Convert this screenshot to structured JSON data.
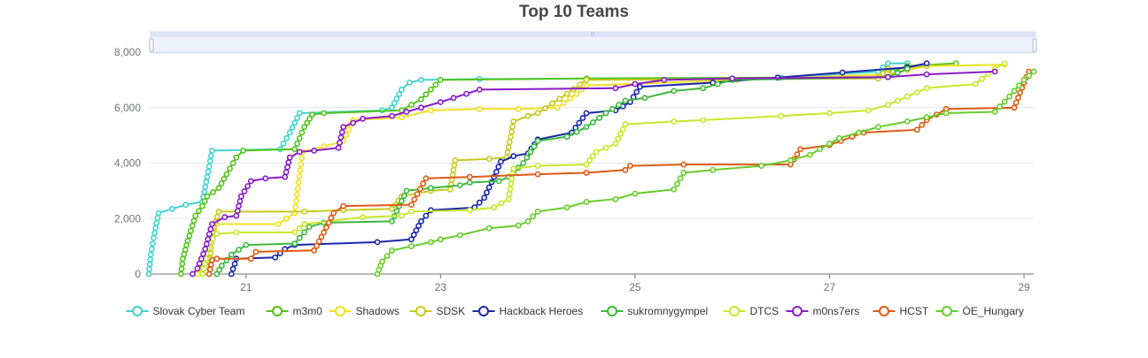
{
  "chart_data": {
    "type": "line",
    "title": "Top 10 Teams",
    "xlabel": "",
    "ylabel": "",
    "x_range": [
      20.0,
      29.1
    ],
    "x_ticks": [
      "21",
      "23",
      "25",
      "27",
      "29"
    ],
    "x_tick_values": [
      21,
      23,
      25,
      27,
      29
    ],
    "y_range": [
      0,
      8000
    ],
    "y_ticks": [
      "0",
      "2,000",
      "4,000",
      "6,000",
      "8,000"
    ],
    "y_tick_values": [
      0,
      2000,
      4000,
      6000,
      8000
    ],
    "grid": true,
    "legend_position": "bottom",
    "data_zoom": true,
    "series": [
      {
        "name": "Slovak Cyber Team",
        "color": "#3fd4d0",
        "points": [
          [
            20.0,
            0
          ],
          [
            20.02,
            700
          ],
          [
            20.05,
            1300
          ],
          [
            20.1,
            2200
          ],
          [
            20.38,
            2500
          ],
          [
            20.55,
            2600
          ],
          [
            20.6,
            3500
          ],
          [
            20.65,
            4450
          ],
          [
            21.35,
            4500
          ],
          [
            21.45,
            5100
          ],
          [
            21.55,
            5800
          ],
          [
            22.4,
            5900
          ],
          [
            22.5,
            6000
          ],
          [
            22.6,
            6650
          ],
          [
            22.68,
            6900
          ],
          [
            22.8,
            7000
          ],
          [
            23.4,
            7030
          ],
          [
            26.5,
            7080
          ],
          [
            27.5,
            7300
          ],
          [
            27.6,
            7600
          ],
          [
            27.8,
            7600
          ]
        ]
      },
      {
        "name": "m3m0",
        "color": "#52c41a",
        "points": [
          [
            20.33,
            0
          ],
          [
            20.35,
            550
          ],
          [
            20.4,
            1200
          ],
          [
            20.48,
            2100
          ],
          [
            20.55,
            2450
          ],
          [
            20.6,
            2800
          ],
          [
            20.72,
            3100
          ],
          [
            20.8,
            3600
          ],
          [
            20.9,
            4200
          ],
          [
            20.97,
            4450
          ],
          [
            21.5,
            4500
          ],
          [
            21.6,
            5300
          ],
          [
            21.68,
            5750
          ],
          [
            21.8,
            5800
          ],
          [
            22.6,
            5900
          ],
          [
            22.8,
            6300
          ],
          [
            23.0,
            7000
          ],
          [
            24.5,
            7050
          ],
          [
            27.5,
            7100
          ],
          [
            27.8,
            7500
          ],
          [
            28.3,
            7600
          ]
        ]
      },
      {
        "name": "Shadows",
        "color": "#f0e020",
        "points": [
          [
            20.5,
            0
          ],
          [
            20.55,
            500
          ],
          [
            20.62,
            1300
          ],
          [
            20.7,
            1800
          ],
          [
            21.33,
            1800
          ],
          [
            21.5,
            2200
          ],
          [
            21.58,
            4400
          ],
          [
            21.8,
            4600
          ],
          [
            22.0,
            4800
          ],
          [
            22.08,
            5400
          ],
          [
            22.1,
            5550
          ],
          [
            22.6,
            5650
          ],
          [
            22.9,
            5900
          ],
          [
            23.4,
            5950
          ],
          [
            23.8,
            5950
          ],
          [
            24.2,
            6000
          ],
          [
            24.4,
            6500
          ],
          [
            24.5,
            6800
          ],
          [
            27.6,
            7200
          ],
          [
            28.0,
            7500
          ],
          [
            28.8,
            7550
          ]
        ]
      },
      {
        "name": "SDSK",
        "color": "#c8c81e",
        "points": [
          [
            20.62,
            0
          ],
          [
            20.65,
            1500
          ],
          [
            20.72,
            2250
          ],
          [
            21.6,
            2250
          ],
          [
            22.0,
            2300
          ],
          [
            22.5,
            2350
          ],
          [
            22.6,
            2800
          ],
          [
            22.9,
            3000
          ],
          [
            23.1,
            3050
          ],
          [
            23.15,
            4100
          ],
          [
            23.5,
            4150
          ],
          [
            23.68,
            4200
          ],
          [
            23.75,
            5500
          ],
          [
            23.9,
            5700
          ],
          [
            24.0,
            5800
          ],
          [
            24.3,
            6500
          ],
          [
            24.5,
            7000
          ],
          [
            27.5,
            7050
          ],
          [
            27.6,
            7400
          ],
          [
            28.0,
            7500
          ]
        ]
      },
      {
        "name": "Hackback Heroes",
        "color": "#1a28a8",
        "points": [
          [
            20.85,
            0
          ],
          [
            20.9,
            550
          ],
          [
            21.3,
            600
          ],
          [
            21.4,
            900
          ],
          [
            21.5,
            1050
          ],
          [
            22.35,
            1150
          ],
          [
            22.7,
            1250
          ],
          [
            22.8,
            1900
          ],
          [
            22.9,
            2300
          ],
          [
            23.35,
            2400
          ],
          [
            23.45,
            2750
          ],
          [
            23.55,
            3500
          ],
          [
            23.62,
            4050
          ],
          [
            23.75,
            4250
          ],
          [
            23.9,
            4350
          ],
          [
            24.0,
            4850
          ],
          [
            24.35,
            5100
          ],
          [
            24.5,
            5800
          ],
          [
            24.8,
            5900
          ],
          [
            24.95,
            6200
          ],
          [
            25.05,
            6750
          ],
          [
            25.8,
            6900
          ],
          [
            27.8,
            7450
          ],
          [
            28.0,
            7600
          ]
        ]
      },
      {
        "name": "sukromnygympel",
        "color": "#3cb83c",
        "points": [
          [
            20.7,
            0
          ],
          [
            20.75,
            300
          ],
          [
            20.85,
            700
          ],
          [
            21.0,
            1050
          ],
          [
            21.5,
            1100
          ],
          [
            21.65,
            1700
          ],
          [
            21.8,
            1850
          ],
          [
            22.5,
            1900
          ],
          [
            22.65,
            3000
          ],
          [
            22.9,
            3100
          ],
          [
            23.2,
            3200
          ],
          [
            23.3,
            3300
          ],
          [
            23.6,
            3350
          ],
          [
            23.7,
            3500
          ],
          [
            23.85,
            4000
          ],
          [
            24.0,
            4800
          ],
          [
            24.3,
            4950
          ],
          [
            24.5,
            5300
          ],
          [
            24.7,
            5800
          ],
          [
            24.9,
            6250
          ],
          [
            25.1,
            6350
          ],
          [
            25.4,
            6600
          ],
          [
            25.7,
            6700
          ],
          [
            26.0,
            7000
          ],
          [
            27.6,
            7100
          ],
          [
            27.8,
            7400
          ]
        ]
      },
      {
        "name": "DTCS",
        "color": "#c6e82a",
        "points": [
          [
            20.55,
            0
          ],
          [
            20.62,
            1100
          ],
          [
            20.7,
            1450
          ],
          [
            20.9,
            1500
          ],
          [
            21.5,
            1500
          ],
          [
            21.6,
            1800
          ],
          [
            22.2,
            2050
          ],
          [
            22.6,
            2100
          ],
          [
            22.7,
            2250
          ],
          [
            23.3,
            2300
          ],
          [
            23.55,
            2400
          ],
          [
            23.7,
            2700
          ],
          [
            23.75,
            3800
          ],
          [
            24.0,
            3900
          ],
          [
            24.5,
            3950
          ],
          [
            24.6,
            4400
          ],
          [
            24.8,
            4700
          ],
          [
            24.9,
            5400
          ],
          [
            25.4,
            5500
          ],
          [
            25.7,
            5550
          ],
          [
            26.5,
            5700
          ],
          [
            27.0,
            5800
          ],
          [
            27.4,
            5900
          ],
          [
            27.6,
            6100
          ],
          [
            27.8,
            6400
          ],
          [
            28.0,
            6700
          ],
          [
            28.5,
            6850
          ],
          [
            28.7,
            7400
          ],
          [
            28.8,
            7600
          ]
        ]
      },
      {
        "name": "m0ns7ers",
        "color": "#8a1ac8",
        "points": [
          [
            20.45,
            0
          ],
          [
            20.5,
            200
          ],
          [
            20.58,
            900
          ],
          [
            20.65,
            1800
          ],
          [
            20.78,
            2050
          ],
          [
            20.9,
            2100
          ],
          [
            20.95,
            2800
          ],
          [
            21.05,
            3350
          ],
          [
            21.2,
            3450
          ],
          [
            21.4,
            3500
          ],
          [
            21.45,
            4200
          ],
          [
            21.55,
            4400
          ],
          [
            21.7,
            4450
          ],
          [
            21.95,
            4550
          ],
          [
            22.0,
            5300
          ],
          [
            22.2,
            5600
          ],
          [
            22.5,
            5700
          ],
          [
            22.8,
            6000
          ],
          [
            23.0,
            6200
          ],
          [
            23.4,
            6650
          ],
          [
            24.8,
            6700
          ],
          [
            25.0,
            6850
          ],
          [
            25.3,
            7000
          ],
          [
            26.0,
            7050
          ],
          [
            27.6,
            7100
          ],
          [
            28.0,
            7200
          ],
          [
            28.7,
            7300
          ]
        ]
      },
      {
        "name": "HCST",
        "color": "#e05a12",
        "points": [
          [
            20.62,
            0
          ],
          [
            20.65,
            500
          ],
          [
            20.7,
            550
          ],
          [
            21.05,
            550
          ],
          [
            21.1,
            800
          ],
          [
            21.7,
            850
          ],
          [
            21.8,
            1500
          ],
          [
            21.9,
            2200
          ],
          [
            22.0,
            2450
          ],
          [
            22.7,
            2500
          ],
          [
            22.85,
            3450
          ],
          [
            23.3,
            3500
          ],
          [
            24.0,
            3600
          ],
          [
            24.5,
            3650
          ],
          [
            24.9,
            3750
          ],
          [
            24.95,
            3900
          ],
          [
            25.5,
            3950
          ],
          [
            26.6,
            3950
          ],
          [
            26.7,
            4500
          ],
          [
            27.0,
            4650
          ],
          [
            27.35,
            5100
          ],
          [
            27.9,
            5200
          ],
          [
            28.0,
            5550
          ],
          [
            28.2,
            5950
          ],
          [
            28.9,
            6000
          ],
          [
            29.0,
            6900
          ],
          [
            29.05,
            7300
          ]
        ]
      },
      {
        "name": "ÓE_Hungary",
        "color": "#67cc2a",
        "points": [
          [
            22.35,
            0
          ],
          [
            22.4,
            450
          ],
          [
            22.5,
            850
          ],
          [
            22.7,
            1000
          ],
          [
            22.9,
            1150
          ],
          [
            23.0,
            1250
          ],
          [
            23.2,
            1400
          ],
          [
            23.5,
            1650
          ],
          [
            23.8,
            1750
          ],
          [
            23.9,
            1900
          ],
          [
            24.0,
            2250
          ],
          [
            24.3,
            2400
          ],
          [
            24.5,
            2600
          ],
          [
            24.8,
            2700
          ],
          [
            25.0,
            2900
          ],
          [
            25.4,
            3050
          ],
          [
            25.5,
            3650
          ],
          [
            25.8,
            3750
          ],
          [
            26.3,
            3900
          ],
          [
            26.6,
            4100
          ],
          [
            26.8,
            4300
          ],
          [
            27.1,
            4900
          ],
          [
            27.5,
            5300
          ],
          [
            27.8,
            5500
          ],
          [
            28.2,
            5800
          ],
          [
            28.7,
            5850
          ],
          [
            28.85,
            6400
          ],
          [
            29.0,
            7000
          ],
          [
            29.1,
            7300
          ]
        ]
      }
    ]
  }
}
